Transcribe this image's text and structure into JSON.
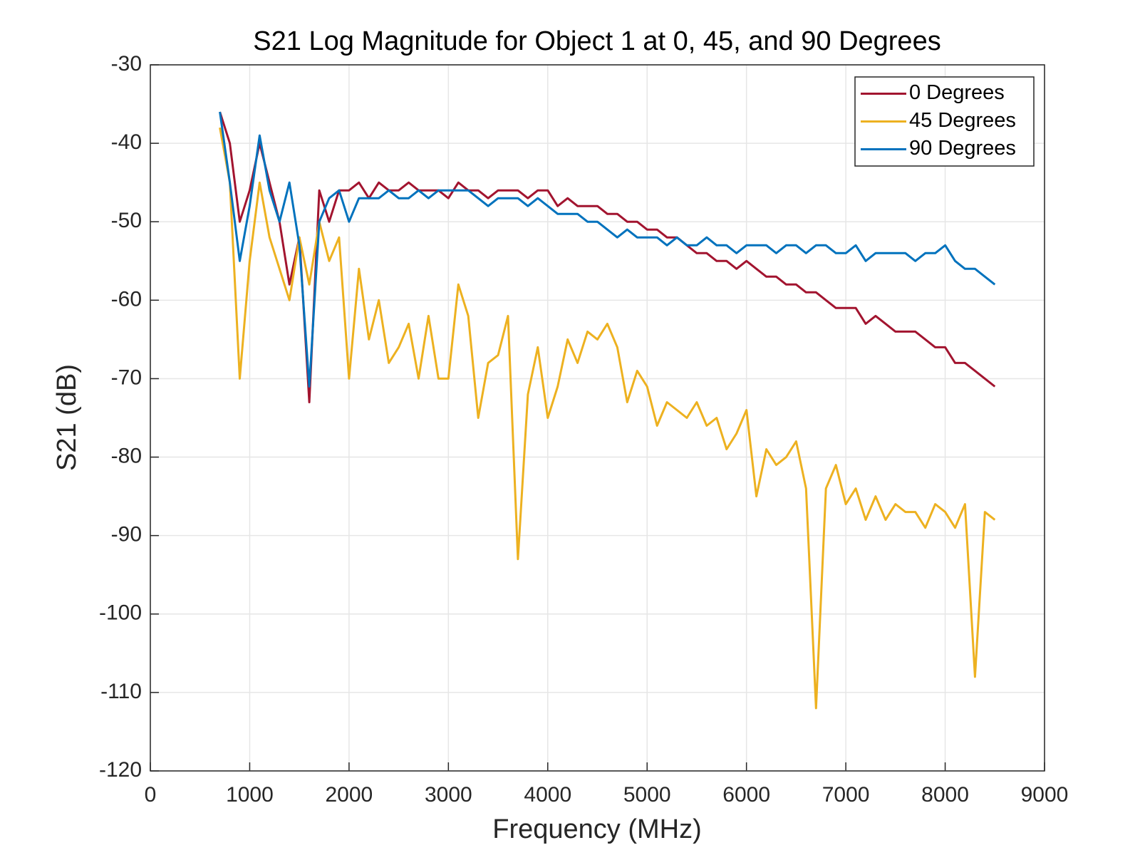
{
  "chart_data": {
    "type": "line",
    "title": "S21 Log Magnitude for Object 1 at 0, 45, and 90 Degrees",
    "x_label": "Frequency (MHz)",
    "y_label": "S21 (dB)",
    "x": [
      700,
      800,
      900,
      1000,
      1100,
      1200,
      1300,
      1400,
      1500,
      1600,
      1700,
      1800,
      1900,
      2000,
      2100,
      2200,
      2300,
      2400,
      2500,
      2600,
      2700,
      2800,
      2900,
      3000,
      3100,
      3200,
      3300,
      3400,
      3500,
      3600,
      3700,
      3800,
      3900,
      4000,
      4100,
      4200,
      4300,
      4400,
      4500,
      4600,
      4700,
      4800,
      4900,
      5000,
      5100,
      5200,
      5300,
      5400,
      5500,
      5600,
      5700,
      5800,
      5900,
      6000,
      6100,
      6200,
      6300,
      6400,
      6500,
      6600,
      6700,
      6800,
      6900,
      7000,
      7100,
      7200,
      7300,
      7400,
      7500,
      7600,
      7700,
      7800,
      7900,
      8000,
      8100,
      8200,
      8300,
      8400,
      8500
    ],
    "series": [
      {
        "name": "0 Degrees",
        "color": "#A2142F",
        "values": [
          -36,
          -40,
          -50,
          -46,
          -40,
          -45,
          -50,
          -58,
          -52,
          -73,
          -46,
          -50,
          -46,
          -46,
          -45,
          -47,
          -45,
          -46,
          -46,
          -45,
          -46,
          -46,
          -46,
          -47,
          -45,
          -46,
          -46,
          -47,
          -46,
          -46,
          -46,
          -47,
          -46,
          -46,
          -48,
          -47,
          -48,
          -48,
          -48,
          -49,
          -49,
          -50,
          -50,
          -51,
          -51,
          -52,
          -52,
          -53,
          -54,
          -54,
          -55,
          -55,
          -56,
          -55,
          -56,
          -57,
          -57,
          -58,
          -58,
          -59,
          -59,
          -60,
          -61,
          -61,
          -61,
          -63,
          -62,
          -63,
          -64,
          -64,
          -64,
          -65,
          -66,
          -66,
          -68,
          -68,
          -69,
          -70,
          -71
        ]
      },
      {
        "name": "45 Degrees",
        "color": "#EDB120",
        "values": [
          -38,
          -45,
          -70,
          -55,
          -45,
          -52,
          -56,
          -60,
          -52,
          -58,
          -50,
          -55,
          -52,
          -70,
          -56,
          -65,
          -60,
          -68,
          -66,
          -63,
          -70,
          -62,
          -70,
          -70,
          -58,
          -62,
          -75,
          -68,
          -67,
          -62,
          -93,
          -72,
          -66,
          -75,
          -71,
          -65,
          -68,
          -64,
          -65,
          -63,
          -66,
          -73,
          -69,
          -71,
          -76,
          -73,
          -74,
          -75,
          -73,
          -76,
          -75,
          -79,
          -77,
          -74,
          -85,
          -79,
          -81,
          -80,
          -78,
          -84,
          -112,
          -84,
          -81,
          -86,
          -84,
          -88,
          -85,
          -88,
          -86,
          -87,
          -87,
          -89,
          -86,
          -87,
          -89,
          -86,
          -108,
          -87,
          -88
        ]
      },
      {
        "name": "90 Degrees",
        "color": "#0072BD",
        "values": [
          -36,
          -45,
          -55,
          -48,
          -39,
          -46,
          -50,
          -45,
          -53,
          -71,
          -50,
          -47,
          -46,
          -50,
          -47,
          -47,
          -47,
          -46,
          -47,
          -47,
          -46,
          -47,
          -46,
          -46,
          -46,
          -46,
          -47,
          -48,
          -47,
          -47,
          -47,
          -48,
          -47,
          -48,
          -49,
          -49,
          -49,
          -50,
          -50,
          -51,
          -52,
          -51,
          -52,
          -52,
          -52,
          -53,
          -52,
          -53,
          -53,
          -52,
          -53,
          -53,
          -54,
          -53,
          -53,
          -53,
          -54,
          -53,
          -53,
          -54,
          -53,
          -53,
          -54,
          -54,
          -53,
          -55,
          -54,
          -54,
          -54,
          -54,
          -55,
          -54,
          -54,
          -53,
          -55,
          -56,
          -56,
          -57,
          -58
        ]
      }
    ],
    "xlim": [
      0,
      9000
    ],
    "ylim": [
      -120,
      -30
    ],
    "xticks": [
      0,
      1000,
      2000,
      3000,
      4000,
      5000,
      6000,
      7000,
      8000,
      9000
    ],
    "yticks": [
      -120,
      -110,
      -100,
      -90,
      -80,
      -70,
      -60,
      -50,
      -40,
      -30
    ],
    "grid": true,
    "legend": "top-right"
  }
}
